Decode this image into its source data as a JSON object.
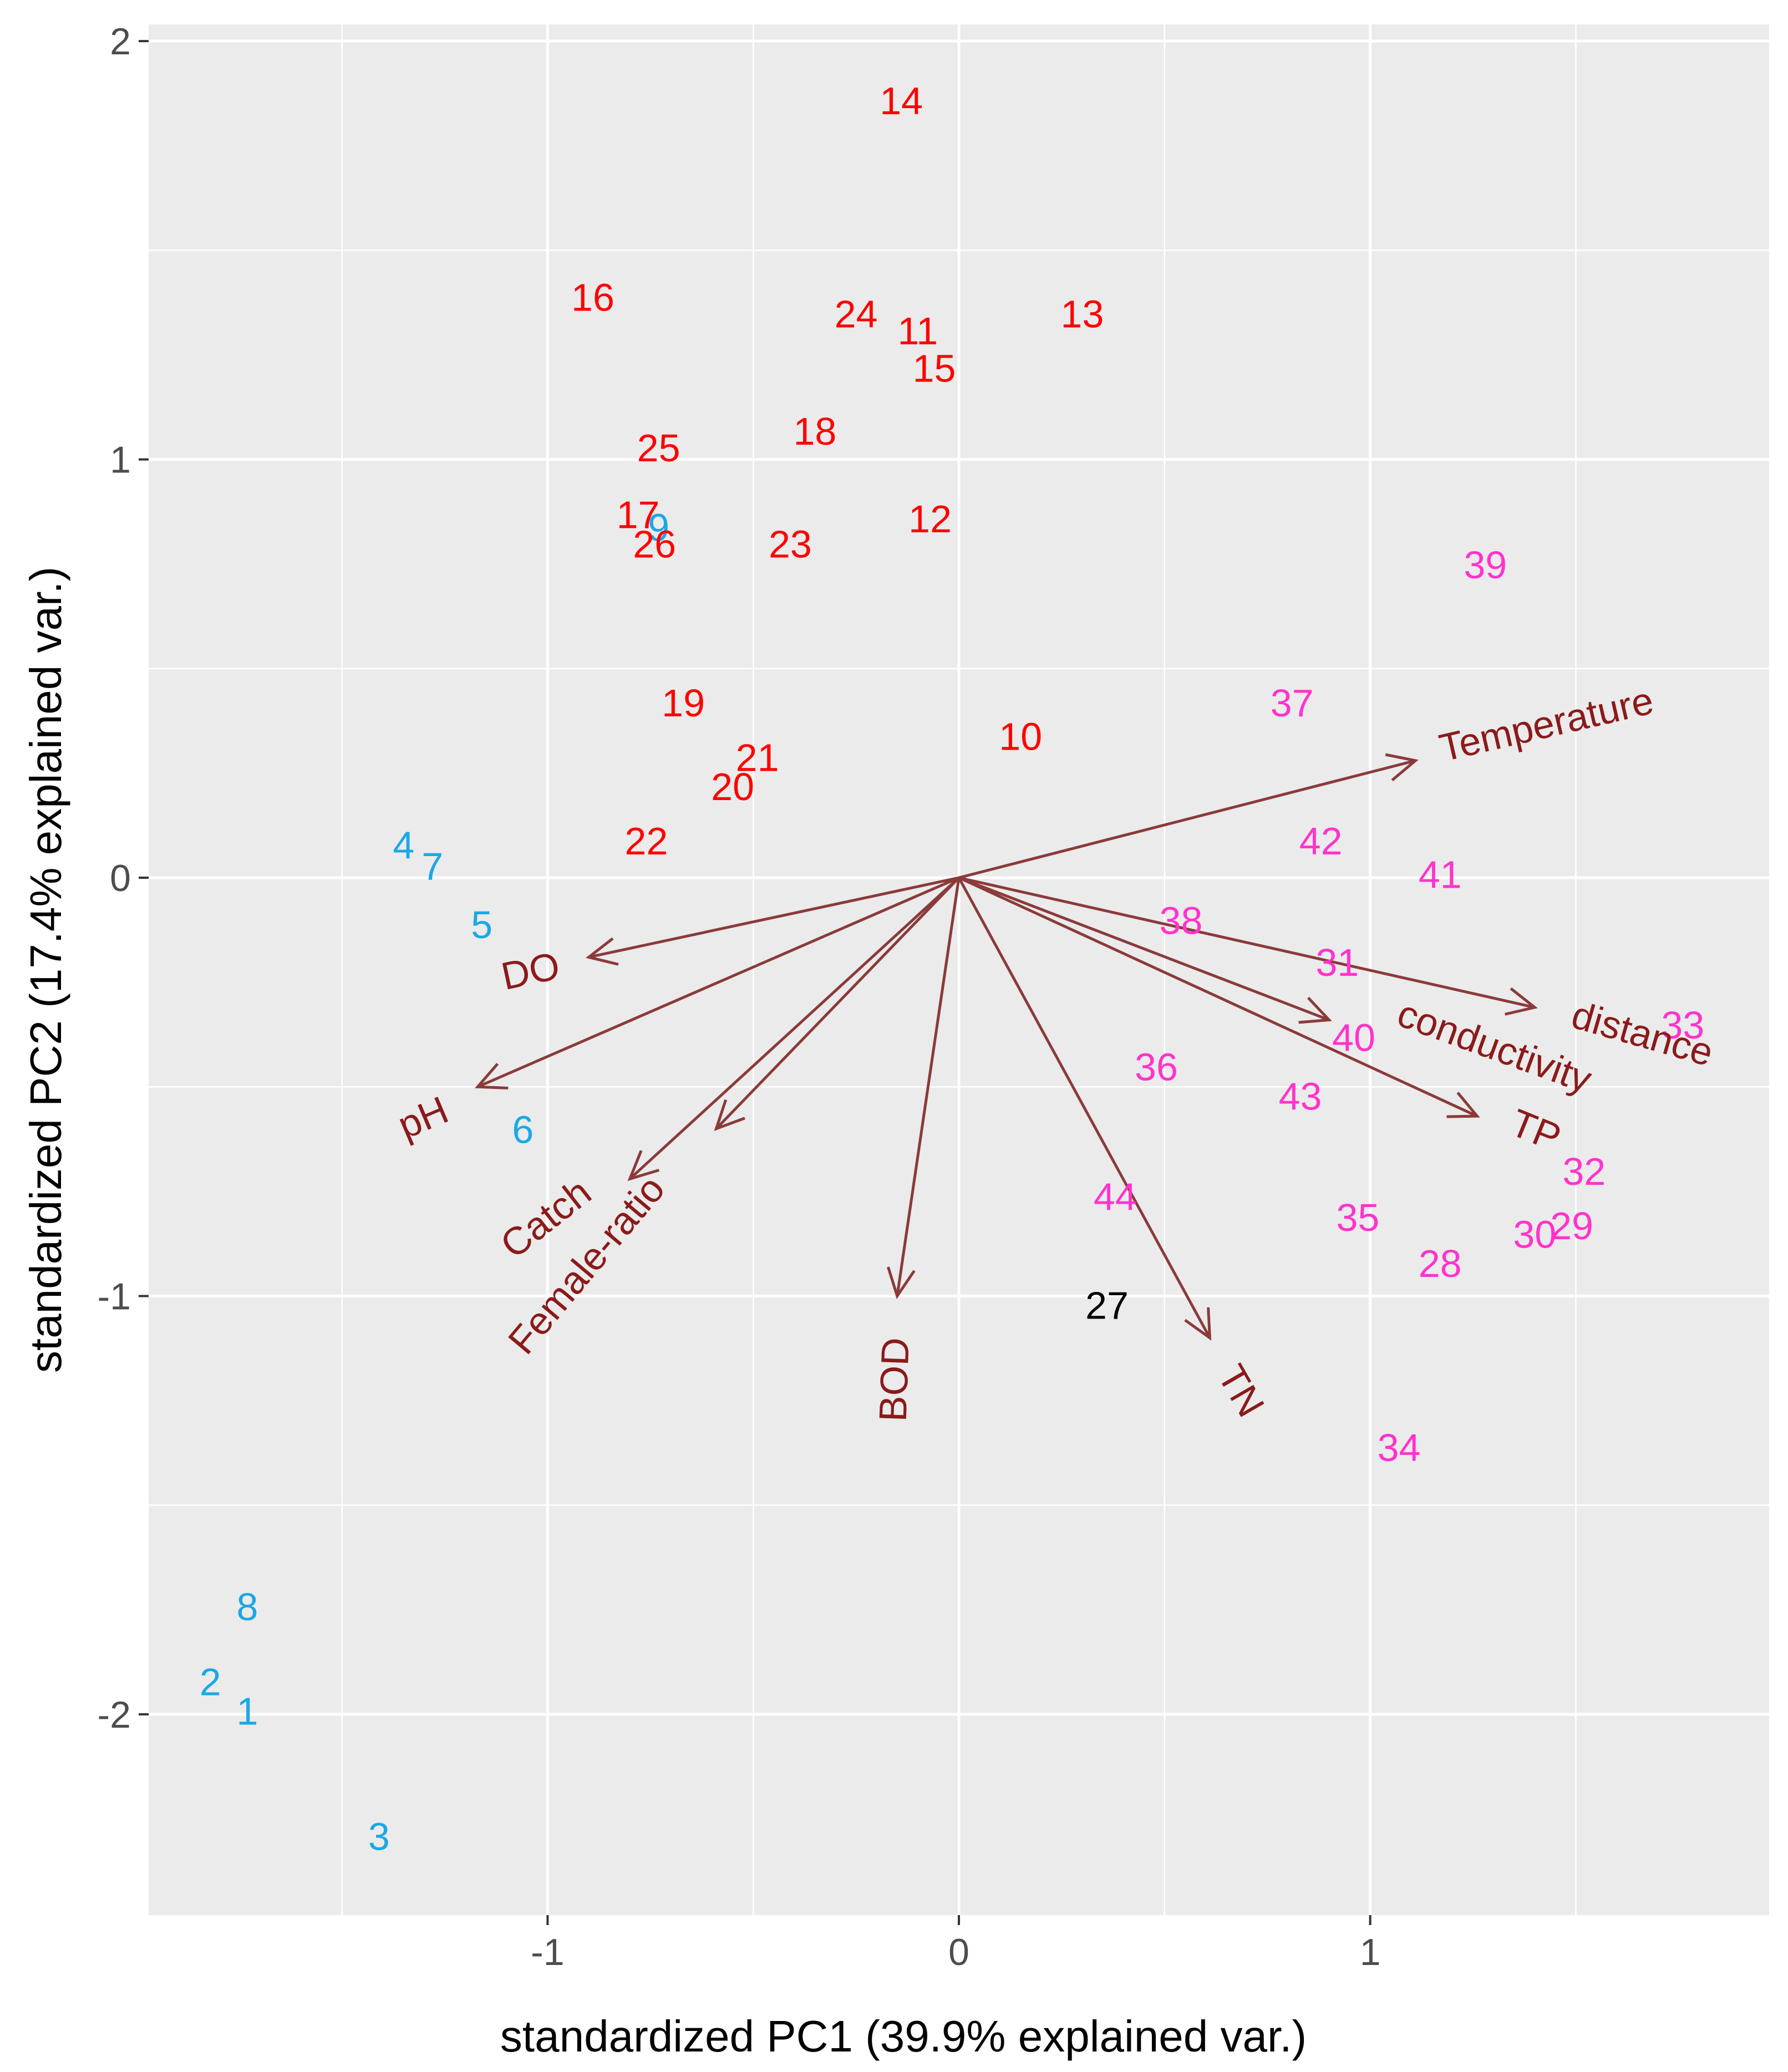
{
  "chart_data": {
    "type": "scatter",
    "subtype": "pca-biplot",
    "xlabel": "standardized PC1 (39.9% explained var.)",
    "ylabel": "standardized PC2 (17.4% explained var.)",
    "xlim": [
      -1.97,
      1.97
    ],
    "ylim": [
      -2.48,
      2.04
    ],
    "x_ticks": [
      {
        "value": -1,
        "label": "-1"
      },
      {
        "value": 0,
        "label": "0"
      },
      {
        "value": 1,
        "label": "1"
      }
    ],
    "y_ticks": [
      {
        "value": -2,
        "label": "-2"
      },
      {
        "value": -1,
        "label": "-1"
      },
      {
        "value": 0,
        "label": "0"
      },
      {
        "value": 1,
        "label": "1"
      },
      {
        "value": 2,
        "label": "2"
      }
    ],
    "group_colors": {
      "blue": "#1aa8e6",
      "red": "#ff0000",
      "magenta": "#ff33cc",
      "black": "#000000"
    },
    "arrow_color": "#8b3a3a",
    "arrow_label_color": "#8b1a1a",
    "points": [
      {
        "label": "1",
        "x": -1.73,
        "y": -2.0,
        "group": "blue"
      },
      {
        "label": "2",
        "x": -1.82,
        "y": -1.93,
        "group": "blue"
      },
      {
        "label": "3",
        "x": -1.41,
        "y": -2.3,
        "group": "blue"
      },
      {
        "label": "4",
        "x": -1.35,
        "y": 0.07,
        "group": "blue"
      },
      {
        "label": "5",
        "x": -1.16,
        "y": -0.12,
        "group": "blue"
      },
      {
        "label": "6",
        "x": -1.06,
        "y": -0.61,
        "group": "blue"
      },
      {
        "label": "7",
        "x": -1.28,
        "y": 0.02,
        "group": "blue"
      },
      {
        "label": "8",
        "x": -1.73,
        "y": -1.75,
        "group": "blue"
      },
      {
        "label": "9",
        "x": -0.73,
        "y": 0.83,
        "group": "blue"
      },
      {
        "label": "10",
        "x": 0.15,
        "y": 0.33,
        "group": "red"
      },
      {
        "label": "11",
        "x": -0.1,
        "y": 1.3,
        "group": "red"
      },
      {
        "label": "12",
        "x": -0.07,
        "y": 0.85,
        "group": "red"
      },
      {
        "label": "13",
        "x": 0.3,
        "y": 1.34,
        "group": "red"
      },
      {
        "label": "14",
        "x": -0.14,
        "y": 1.85,
        "group": "red"
      },
      {
        "label": "15",
        "x": -0.06,
        "y": 1.21,
        "group": "red"
      },
      {
        "label": "16",
        "x": -0.89,
        "y": 1.38,
        "group": "red"
      },
      {
        "label": "17",
        "x": -0.78,
        "y": 0.86,
        "group": "red"
      },
      {
        "label": "18",
        "x": -0.35,
        "y": 1.06,
        "group": "red"
      },
      {
        "label": "19",
        "x": -0.67,
        "y": 0.41,
        "group": "red"
      },
      {
        "label": "20",
        "x": -0.55,
        "y": 0.21,
        "group": "red"
      },
      {
        "label": "21",
        "x": -0.49,
        "y": 0.28,
        "group": "red"
      },
      {
        "label": "22",
        "x": -0.76,
        "y": 0.08,
        "group": "red"
      },
      {
        "label": "23",
        "x": -0.41,
        "y": 0.79,
        "group": "red"
      },
      {
        "label": "24",
        "x": -0.25,
        "y": 1.34,
        "group": "red"
      },
      {
        "label": "25",
        "x": -0.73,
        "y": 1.02,
        "group": "red"
      },
      {
        "label": "26",
        "x": -0.74,
        "y": 0.79,
        "group": "red"
      },
      {
        "label": "27",
        "x": 0.36,
        "y": -1.03,
        "group": "black"
      },
      {
        "label": "28",
        "x": 1.17,
        "y": -0.93,
        "group": "magenta"
      },
      {
        "label": "29",
        "x": 1.49,
        "y": -0.84,
        "group": "magenta"
      },
      {
        "label": "30",
        "x": 1.4,
        "y": -0.86,
        "group": "magenta"
      },
      {
        "label": "31",
        "x": 0.92,
        "y": -0.21,
        "group": "magenta"
      },
      {
        "label": "32",
        "x": 1.52,
        "y": -0.71,
        "group": "magenta"
      },
      {
        "label": "33",
        "x": 1.76,
        "y": -0.36,
        "group": "magenta"
      },
      {
        "label": "34",
        "x": 1.07,
        "y": -1.37,
        "group": "magenta"
      },
      {
        "label": "35",
        "x": 0.97,
        "y": -0.82,
        "group": "magenta"
      },
      {
        "label": "36",
        "x": 0.48,
        "y": -0.46,
        "group": "magenta"
      },
      {
        "label": "37",
        "x": 0.81,
        "y": 0.41,
        "group": "magenta"
      },
      {
        "label": "38",
        "x": 0.54,
        "y": -0.11,
        "group": "magenta"
      },
      {
        "label": "39",
        "x": 1.28,
        "y": 0.74,
        "group": "magenta"
      },
      {
        "label": "40",
        "x": 0.96,
        "y": -0.39,
        "group": "magenta"
      },
      {
        "label": "41",
        "x": 1.17,
        "y": 0.0,
        "group": "magenta"
      },
      {
        "label": "42",
        "x": 0.88,
        "y": 0.08,
        "group": "magenta"
      },
      {
        "label": "43",
        "x": 0.83,
        "y": -0.53,
        "group": "magenta"
      },
      {
        "label": "44",
        "x": 0.38,
        "y": -0.77,
        "group": "magenta"
      }
    ],
    "arrows": [
      {
        "label": "Temperature",
        "x": 1.11,
        "y": 0.28,
        "label_x": 1.43,
        "label_y": 0.36,
        "angle": -13
      },
      {
        "label": "DO",
        "x": -0.9,
        "y": -0.19,
        "label_x": -1.04,
        "label_y": -0.23,
        "angle": -12
      },
      {
        "label": "pH",
        "x": -1.17,
        "y": -0.5,
        "label_x": -1.3,
        "label_y": -0.58,
        "angle": -23
      },
      {
        "label": "Catch",
        "x": -0.59,
        "y": -0.6,
        "label_x": -1.0,
        "label_y": -0.82,
        "angle": -38
      },
      {
        "label": "Female-ratio",
        "x": -0.8,
        "y": -0.72,
        "label_x": -0.9,
        "label_y": -0.93,
        "angle": -50
      },
      {
        "label": "BOD",
        "x": -0.15,
        "y": -1.0,
        "label_x": -0.15,
        "label_y": -1.2,
        "angle": -88
      },
      {
        "label": "TN",
        "x": 0.61,
        "y": -1.1,
        "label_x": 0.68,
        "label_y": -1.23,
        "angle": 60
      },
      {
        "label": "TP",
        "x": 1.26,
        "y": -0.57,
        "label_x": 1.4,
        "label_y": -0.61,
        "angle": 22
      },
      {
        "label": "conductivity",
        "x": 0.9,
        "y": -0.34,
        "label_x": 1.3,
        "label_y": -0.41,
        "angle": 20
      },
      {
        "label": "distance",
        "x": 1.4,
        "y": -0.31,
        "label_x": 1.66,
        "label_y": -0.38,
        "angle": 16
      }
    ]
  }
}
